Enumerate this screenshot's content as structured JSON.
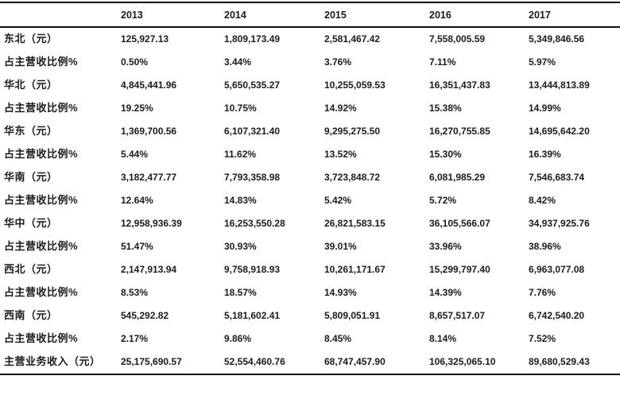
{
  "table": {
    "title_semantic": "regional-revenue-by-year",
    "columns": [
      "",
      "2013",
      "2014",
      "2015",
      "2016",
      "2017"
    ],
    "rows": [
      {
        "label": "东北（元）",
        "values": [
          "125,927.13",
          "1,809,173.49",
          "2,581,467.42",
          "7,558,005.59",
          "5,349,846.56"
        ]
      },
      {
        "label": "占主营收比例%",
        "values": [
          "0.50%",
          "3.44%",
          "3.76%",
          "7.11%",
          "5.97%"
        ]
      },
      {
        "label": "华北（元）",
        "values": [
          "4,845,441.96",
          "5,650,535.27",
          "10,255,059.53",
          "16,351,437.83",
          "13,444,813.89"
        ]
      },
      {
        "label": "占主营收比例%",
        "values": [
          "19.25%",
          "10.75%",
          "14.92%",
          "15.38%",
          "14.99%"
        ]
      },
      {
        "label": "华东（元）",
        "values": [
          "1,369,700.56",
          "6,107,321.40",
          "9,295,275.50",
          "16,270,755.85",
          "14,695,642.20"
        ]
      },
      {
        "label": "占主营收比例%",
        "values": [
          "5.44%",
          "11.62%",
          "13.52%",
          "15.30%",
          "16.39%"
        ]
      },
      {
        "label": "华南（元）",
        "values": [
          "3,182,477.77",
          "7,793,358.98",
          "3,723,848.72",
          "6,081,985.29",
          "7,546,683.74"
        ]
      },
      {
        "label": "占主营收比例%",
        "values": [
          "12.64%",
          "14.83%",
          "5.42%",
          "5.72%",
          "8.42%"
        ]
      },
      {
        "label": "华中（元）",
        "values": [
          "12,958,936.39",
          "16,253,550.28",
          "26,821,583.15",
          "36,105,566.07",
          "34,937,925.76"
        ]
      },
      {
        "label": "占主营收比例%",
        "values": [
          "51.47%",
          "30.93%",
          "39.01%",
          "33.96%",
          "38.96%"
        ]
      },
      {
        "label": "西北（元）",
        "values": [
          "2,147,913.94",
          "9,758,918.93",
          "10,261,171.67",
          "15,299,797.40",
          "6,963,077.08"
        ]
      },
      {
        "label": "占主营收比例%",
        "values": [
          "8.53%",
          "18.57%",
          "14.93%",
          "14.39%",
          "7.76%"
        ]
      },
      {
        "label": "西南（元）",
        "values": [
          "545,292.82",
          "5,181,602.41",
          "5,809,051.91",
          "8,657,517.07",
          "6,742,540.20"
        ]
      },
      {
        "label": "占主营收比例%",
        "values": [
          "2.17%",
          "9.86%",
          "8.45%",
          "8.14%",
          "7.52%"
        ]
      },
      {
        "label": "主营业务收入（元）",
        "values": [
          "25,175,690.57",
          "52,554,460.76",
          "68,747,457.90",
          "106,325,065.10",
          "89,680,529.43"
        ]
      }
    ]
  },
  "chart_data": {
    "type": "table",
    "title": "",
    "categories": [
      "2013",
      "2014",
      "2015",
      "2016",
      "2017"
    ],
    "series": [
      {
        "name": "东北（元）",
        "values": [
          125927.13,
          1809173.49,
          2581467.42,
          7558005.59,
          5349846.56
        ]
      },
      {
        "name": "东北 占主营收比例%",
        "values": [
          0.5,
          3.44,
          3.76,
          7.11,
          5.97
        ]
      },
      {
        "name": "华北（元）",
        "values": [
          4845441.96,
          5650535.27,
          10255059.53,
          16351437.83,
          13444813.89
        ]
      },
      {
        "name": "华北 占主营收比例%",
        "values": [
          19.25,
          10.75,
          14.92,
          15.38,
          14.99
        ]
      },
      {
        "name": "华东（元）",
        "values": [
          1369700.56,
          6107321.4,
          9295275.5,
          16270755.85,
          14695642.2
        ]
      },
      {
        "name": "华东 占主营收比例%",
        "values": [
          5.44,
          11.62,
          13.52,
          15.3,
          16.39
        ]
      },
      {
        "name": "华南（元）",
        "values": [
          3182477.77,
          7793358.98,
          3723848.72,
          6081985.29,
          7546683.74
        ]
      },
      {
        "name": "华南 占主营收比例%",
        "values": [
          12.64,
          14.83,
          5.42,
          5.72,
          8.42
        ]
      },
      {
        "name": "华中（元）",
        "values": [
          12958936.39,
          16253550.28,
          26821583.15,
          36105566.07,
          34937925.76
        ]
      },
      {
        "name": "华中 占主营收比例%",
        "values": [
          51.47,
          30.93,
          39.01,
          33.96,
          38.96
        ]
      },
      {
        "name": "西北（元）",
        "values": [
          2147913.94,
          9758918.93,
          10261171.67,
          15299797.4,
          6963077.08
        ]
      },
      {
        "name": "西北 占主营收比例%",
        "values": [
          8.53,
          18.57,
          14.93,
          14.39,
          7.76
        ]
      },
      {
        "name": "西南（元）",
        "values": [
          545292.82,
          5181602.41,
          5809051.91,
          8657517.07,
          6742540.2
        ]
      },
      {
        "name": "西南 占主营收比例%",
        "values": [
          2.17,
          9.86,
          8.45,
          8.14,
          7.52
        ]
      },
      {
        "name": "主营业务收入（元）",
        "values": [
          25175690.57,
          52554460.76,
          68747457.9,
          106325065.1,
          89680529.43
        ]
      }
    ]
  }
}
